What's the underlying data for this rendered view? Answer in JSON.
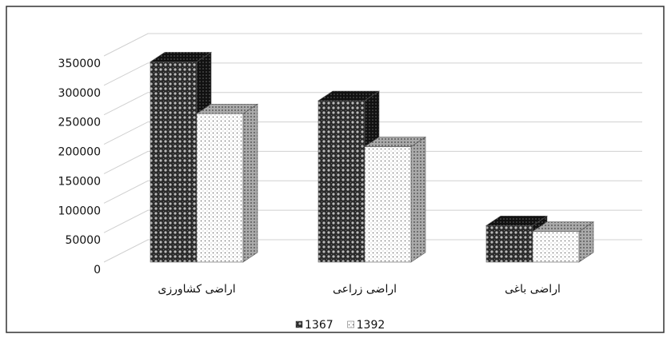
{
  "chart_data": {
    "type": "bar3d",
    "categories": [
      "اراضی کشاورزی",
      "اراضی زراعی",
      "اراضی باغی"
    ],
    "series": [
      {
        "name": "1367",
        "color": "#333333",
        "values": [
          340000,
          274000,
          62000
        ]
      },
      {
        "name": "1392",
        "color": "#ffffff",
        "values": [
          252000,
          196000,
          52000
        ]
      }
    ],
    "ylim": [
      0,
      350000
    ],
    "yticks": [
      0,
      50000,
      100000,
      150000,
      200000,
      250000,
      300000,
      350000
    ],
    "grid": true,
    "legend": "bottom"
  }
}
